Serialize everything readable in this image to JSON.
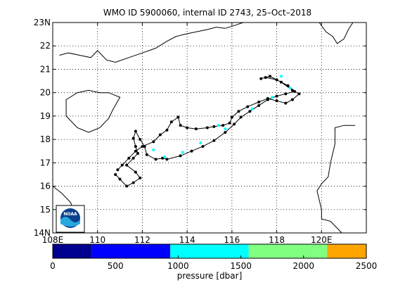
{
  "title": "WMO ID 5900060, internal ID 2743, 25–Oct–2018",
  "map": {
    "lon_range": [
      108,
      122
    ],
    "lat_range": [
      14,
      23
    ],
    "x_ticks": [
      {
        "value": 108,
        "label": "108E"
      },
      {
        "value": 110,
        "label": "110"
      },
      {
        "value": 112,
        "label": "112"
      },
      {
        "value": 114,
        "label": "114"
      },
      {
        "value": 116,
        "label": "116"
      },
      {
        "value": 118,
        "label": "118"
      },
      {
        "value": 120,
        "label": "120E"
      }
    ],
    "y_ticks": [
      {
        "value": 14,
        "label": "14N"
      },
      {
        "value": 15,
        "label": "15"
      },
      {
        "value": 16,
        "label": "16"
      },
      {
        "value": 17,
        "label": "17"
      },
      {
        "value": 18,
        "label": "18"
      },
      {
        "value": 19,
        "label": "19"
      },
      {
        "value": 20,
        "label": "20"
      },
      {
        "value": 21,
        "label": "21"
      },
      {
        "value": 22,
        "label": "22"
      },
      {
        "value": 23,
        "label": "23N"
      }
    ],
    "grid": "dotted",
    "logo_text": "NOAA",
    "coastline_color": "#000000",
    "track_color": "#000000"
  },
  "chart_data": {
    "type": "scatter",
    "xlabel": "",
    "ylabel": "",
    "track": [
      [
        110.8,
        16.5
      ],
      [
        111.0,
        16.3
      ],
      [
        111.3,
        16.0
      ],
      [
        111.6,
        16.15
      ],
      [
        111.9,
        16.35
      ],
      [
        111.7,
        16.6
      ],
      [
        111.3,
        16.9
      ],
      [
        111.6,
        17.2
      ],
      [
        111.8,
        17.4
      ],
      [
        111.7,
        17.7
      ],
      [
        111.6,
        18.05
      ],
      [
        111.7,
        18.35
      ],
      [
        111.9,
        18.0
      ],
      [
        112.1,
        17.7
      ],
      [
        112.2,
        17.35
      ],
      [
        112.6,
        17.15
      ],
      [
        112.9,
        17.2
      ],
      [
        113.1,
        17.15
      ],
      [
        113.7,
        17.3
      ],
      [
        114.2,
        17.5
      ],
      [
        114.7,
        17.7
      ],
      [
        115.2,
        17.95
      ],
      [
        115.7,
        18.3
      ],
      [
        116.1,
        18.65
      ],
      [
        116.4,
        18.95
      ],
      [
        116.8,
        19.2
      ],
      [
        117.2,
        19.45
      ],
      [
        117.6,
        19.7
      ],
      [
        118.0,
        19.85
      ],
      [
        118.4,
        19.95
      ],
      [
        118.8,
        20.05
      ],
      [
        118.5,
        20.3
      ],
      [
        118.0,
        20.55
      ],
      [
        117.5,
        20.65
      ],
      [
        117.3,
        20.6
      ],
      [
        117.7,
        20.7
      ],
      [
        118.2,
        20.45
      ],
      [
        118.7,
        20.1
      ],
      [
        119.0,
        19.95
      ],
      [
        118.7,
        19.7
      ],
      [
        118.4,
        19.55
      ],
      [
        118.0,
        19.65
      ],
      [
        117.6,
        19.75
      ],
      [
        117.2,
        19.6
      ],
      [
        116.7,
        19.4
      ],
      [
        116.3,
        19.2
      ],
      [
        116.0,
        18.95
      ],
      [
        115.9,
        18.7
      ],
      [
        115.6,
        18.6
      ],
      [
        115.2,
        18.55
      ],
      [
        114.9,
        18.5
      ],
      [
        114.4,
        18.45
      ],
      [
        114.0,
        18.5
      ],
      [
        113.7,
        18.6
      ],
      [
        113.6,
        18.95
      ],
      [
        113.3,
        18.75
      ],
      [
        113.1,
        18.4
      ],
      [
        112.8,
        18.2
      ],
      [
        112.5,
        17.9
      ],
      [
        112.0,
        17.7
      ],
      [
        111.7,
        17.5
      ],
      [
        111.4,
        17.2
      ],
      [
        111.1,
        16.9
      ],
      [
        110.9,
        16.7
      ]
    ],
    "profiles_by_pressure": [
      {
        "lon": 118.2,
        "lat": 20.7,
        "bin": 2
      },
      {
        "lon": 118.6,
        "lat": 20.2,
        "bin": 2
      },
      {
        "lon": 117.8,
        "lat": 19.8,
        "bin": 2
      },
      {
        "lon": 116.9,
        "lat": 19.3,
        "bin": 2
      },
      {
        "lon": 115.7,
        "lat": 18.45,
        "bin": 2
      },
      {
        "lon": 114.6,
        "lat": 17.85,
        "bin": 2
      },
      {
        "lon": 113.8,
        "lat": 17.45,
        "bin": 2
      },
      {
        "lon": 113.0,
        "lat": 17.25,
        "bin": 2
      },
      {
        "lon": 112.5,
        "lat": 17.55,
        "bin": 2
      },
      {
        "lon": 115.4,
        "lat": 18.6,
        "bin": 2
      }
    ],
    "colorbar": {
      "label": "pressure [dbar]",
      "range": [
        0,
        2500
      ],
      "ticks": [
        0,
        500,
        1000,
        1500,
        2000,
        2500
      ],
      "bins": [
        {
          "from": 0,
          "to": 312,
          "color": "#00008f"
        },
        {
          "from": 312,
          "to": 937,
          "color": "#0000ff"
        },
        {
          "from": 937,
          "to": 1562,
          "color": "#00ffff"
        },
        {
          "from": 1562,
          "to": 2187,
          "color": "#80ff80"
        },
        {
          "from": 2187,
          "to": 2500,
          "color": "#ffa500"
        }
      ]
    }
  }
}
